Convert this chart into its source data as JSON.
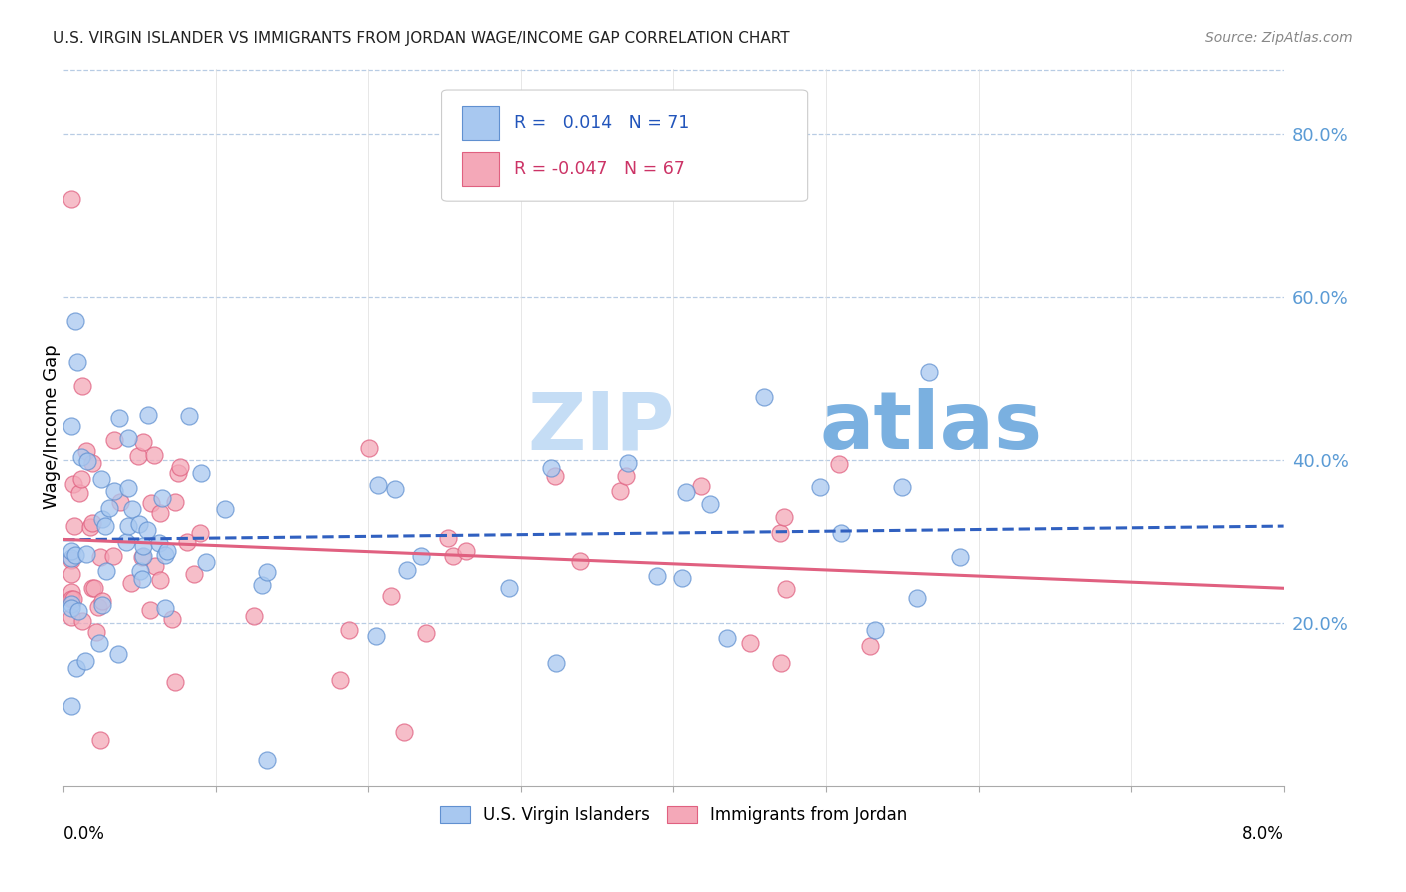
{
  "title": "U.S. VIRGIN ISLANDER VS IMMIGRANTS FROM JORDAN WAGE/INCOME GAP CORRELATION CHART",
  "source": "Source: ZipAtlas.com",
  "ylabel": "Wage/Income Gap",
  "ytick_labels": [
    "20.0%",
    "40.0%",
    "60.0%",
    "80.0%"
  ],
  "ytick_values": [
    0.2,
    0.4,
    0.6,
    0.8
  ],
  "xmin": 0.0,
  "xmax": 0.08,
  "ymin": 0.0,
  "ymax": 0.88,
  "legend1_label": "U.S. Virgin Islanders",
  "legend2_label": "Immigrants from Jordan",
  "series1_R": "0.014",
  "series1_N": "71",
  "series2_R": "-0.047",
  "series2_N": "67",
  "color_blue": "#a8c8f0",
  "color_pink": "#f4a8b8",
  "color_blue_edge": "#6090d0",
  "color_pink_edge": "#e06080",
  "trend_blue": "#3060c0",
  "trend_pink": "#e06080",
  "watermark_zip_color": "#b8d4ee",
  "watermark_atlas_color": "#7aaadd",
  "background": "#ffffff",
  "grid_color": "#b8cce4"
}
